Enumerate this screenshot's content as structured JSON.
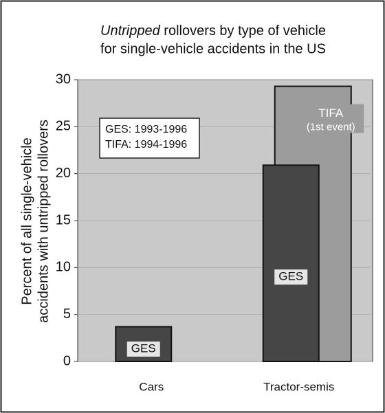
{
  "chart_data": {
    "type": "bar",
    "title": [
      [
        "Untripped",
        " rollovers by type of vehicle"
      ],
      [
        "for single-vehicle accidents in the US"
      ]
    ],
    "ylabel": [
      "Percent of all single-vehicle",
      "accidents with untripped rollovers"
    ],
    "categories": [
      "Cars",
      "Tractor-semis"
    ],
    "series": [
      {
        "name": "GES",
        "color": "#464646",
        "values": [
          3.7,
          20.9
        ]
      },
      {
        "name": "TIFA",
        "note": "(1st event)",
        "color": "#9c9c9c",
        "values": [
          null,
          29.3
        ]
      }
    ],
    "annotation": [
      "GES: 1993-1996",
      "TIFA: 1994-1996"
    ],
    "ylim": [
      0,
      30
    ],
    "yticks": [
      0,
      5,
      10,
      15,
      20,
      25,
      30
    ],
    "grid": true
  }
}
